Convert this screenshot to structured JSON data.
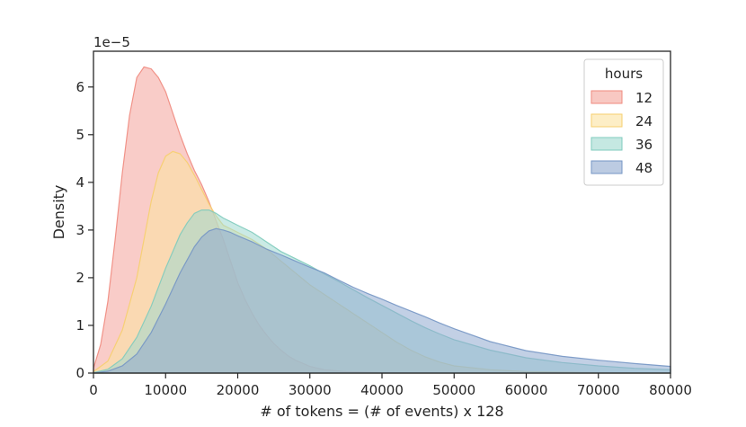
{
  "chart_data": {
    "type": "area",
    "title": "",
    "xlabel": "# of tokens = (# of events) x 128",
    "ylabel": "Density",
    "y_offset_label": "1e−5",
    "xlim": [
      0,
      80000
    ],
    "ylim": [
      0,
      6.75
    ],
    "x_ticks": [
      0,
      10000,
      20000,
      30000,
      40000,
      50000,
      60000,
      70000,
      80000
    ],
    "y_ticks": [
      0,
      1,
      2,
      3,
      4,
      5,
      6
    ],
    "grid": false,
    "legend": {
      "title": "hours",
      "position": "top-right"
    },
    "series": [
      {
        "name": "12",
        "color": "#f4a39a",
        "stroke": "#ef8a7e",
        "points": [
          [
            0,
            0.1
          ],
          [
            1000,
            0.6
          ],
          [
            2000,
            1.5
          ],
          [
            3000,
            2.8
          ],
          [
            4000,
            4.2
          ],
          [
            5000,
            5.4
          ],
          [
            6000,
            6.2
          ],
          [
            7000,
            6.42
          ],
          [
            8000,
            6.38
          ],
          [
            9000,
            6.2
          ],
          [
            10000,
            5.9
          ],
          [
            11000,
            5.45
          ],
          [
            12000,
            5.0
          ],
          [
            13000,
            4.6
          ],
          [
            14000,
            4.25
          ],
          [
            15000,
            3.95
          ],
          [
            16000,
            3.6
          ],
          [
            17000,
            3.2
          ],
          [
            18000,
            2.8
          ],
          [
            19000,
            2.35
          ],
          [
            20000,
            1.9
          ],
          [
            21000,
            1.55
          ],
          [
            22000,
            1.25
          ],
          [
            23000,
            1.0
          ],
          [
            24000,
            0.8
          ],
          [
            25000,
            0.62
          ],
          [
            26000,
            0.48
          ],
          [
            27000,
            0.36
          ],
          [
            28000,
            0.27
          ],
          [
            30000,
            0.14
          ],
          [
            32000,
            0.07
          ],
          [
            35000,
            0.03
          ],
          [
            40000,
            0.01
          ],
          [
            50000,
            0.0
          ],
          [
            80000,
            0.0
          ]
        ]
      },
      {
        "name": "24",
        "color": "#fbe3a0",
        "stroke": "#f6cf6e",
        "points": [
          [
            0,
            0.03
          ],
          [
            2000,
            0.25
          ],
          [
            4000,
            0.9
          ],
          [
            6000,
            2.0
          ],
          [
            7000,
            2.8
          ],
          [
            8000,
            3.6
          ],
          [
            9000,
            4.2
          ],
          [
            10000,
            4.55
          ],
          [
            11000,
            4.65
          ],
          [
            12000,
            4.6
          ],
          [
            13000,
            4.42
          ],
          [
            14000,
            4.15
          ],
          [
            15000,
            3.85
          ],
          [
            16000,
            3.55
          ],
          [
            17000,
            3.3
          ],
          [
            18000,
            3.1
          ],
          [
            20000,
            2.95
          ],
          [
            22000,
            2.8
          ],
          [
            24000,
            2.6
          ],
          [
            26000,
            2.35
          ],
          [
            28000,
            2.1
          ],
          [
            30000,
            1.85
          ],
          [
            32000,
            1.65
          ],
          [
            34000,
            1.45
          ],
          [
            36000,
            1.25
          ],
          [
            38000,
            1.05
          ],
          [
            40000,
            0.85
          ],
          [
            42000,
            0.65
          ],
          [
            44000,
            0.48
          ],
          [
            46000,
            0.34
          ],
          [
            48000,
            0.23
          ],
          [
            50000,
            0.15
          ],
          [
            55000,
            0.07
          ],
          [
            60000,
            0.03
          ],
          [
            70000,
            0.01
          ],
          [
            80000,
            0.0
          ]
        ]
      },
      {
        "name": "36",
        "color": "#9fd9cf",
        "stroke": "#7fcbbd",
        "points": [
          [
            0,
            0.01
          ],
          [
            2000,
            0.08
          ],
          [
            4000,
            0.3
          ],
          [
            6000,
            0.75
          ],
          [
            8000,
            1.4
          ],
          [
            10000,
            2.2
          ],
          [
            12000,
            2.9
          ],
          [
            13000,
            3.15
          ],
          [
            14000,
            3.35
          ],
          [
            15000,
            3.42
          ],
          [
            16000,
            3.42
          ],
          [
            17000,
            3.35
          ],
          [
            18000,
            3.25
          ],
          [
            20000,
            3.1
          ],
          [
            22000,
            2.95
          ],
          [
            24000,
            2.75
          ],
          [
            26000,
            2.55
          ],
          [
            28000,
            2.4
          ],
          [
            30000,
            2.25
          ],
          [
            32000,
            2.08
          ],
          [
            34000,
            1.92
          ],
          [
            36000,
            1.75
          ],
          [
            38000,
            1.58
          ],
          [
            40000,
            1.42
          ],
          [
            42000,
            1.26
          ],
          [
            44000,
            1.1
          ],
          [
            46000,
            0.95
          ],
          [
            48000,
            0.82
          ],
          [
            50000,
            0.7
          ],
          [
            55000,
            0.48
          ],
          [
            60000,
            0.32
          ],
          [
            65000,
            0.22
          ],
          [
            70000,
            0.15
          ],
          [
            75000,
            0.1
          ],
          [
            80000,
            0.07
          ]
        ]
      },
      {
        "name": "48",
        "color": "#8fa9cf",
        "stroke": "#7596c4",
        "points": [
          [
            0,
            0.0
          ],
          [
            2000,
            0.04
          ],
          [
            4000,
            0.15
          ],
          [
            6000,
            0.4
          ],
          [
            8000,
            0.85
          ],
          [
            10000,
            1.45
          ],
          [
            12000,
            2.1
          ],
          [
            14000,
            2.65
          ],
          [
            15000,
            2.85
          ],
          [
            16000,
            2.98
          ],
          [
            17000,
            3.03
          ],
          [
            18000,
            3.0
          ],
          [
            19000,
            2.95
          ],
          [
            20000,
            2.88
          ],
          [
            22000,
            2.75
          ],
          [
            24000,
            2.6
          ],
          [
            26000,
            2.48
          ],
          [
            28000,
            2.35
          ],
          [
            30000,
            2.22
          ],
          [
            32000,
            2.1
          ],
          [
            34000,
            1.95
          ],
          [
            36000,
            1.8
          ],
          [
            38000,
            1.67
          ],
          [
            40000,
            1.55
          ],
          [
            42000,
            1.42
          ],
          [
            44000,
            1.3
          ],
          [
            46000,
            1.18
          ],
          [
            48000,
            1.05
          ],
          [
            50000,
            0.93
          ],
          [
            55000,
            0.66
          ],
          [
            60000,
            0.47
          ],
          [
            65000,
            0.35
          ],
          [
            70000,
            0.27
          ],
          [
            75000,
            0.2
          ],
          [
            80000,
            0.14
          ]
        ]
      }
    ]
  }
}
